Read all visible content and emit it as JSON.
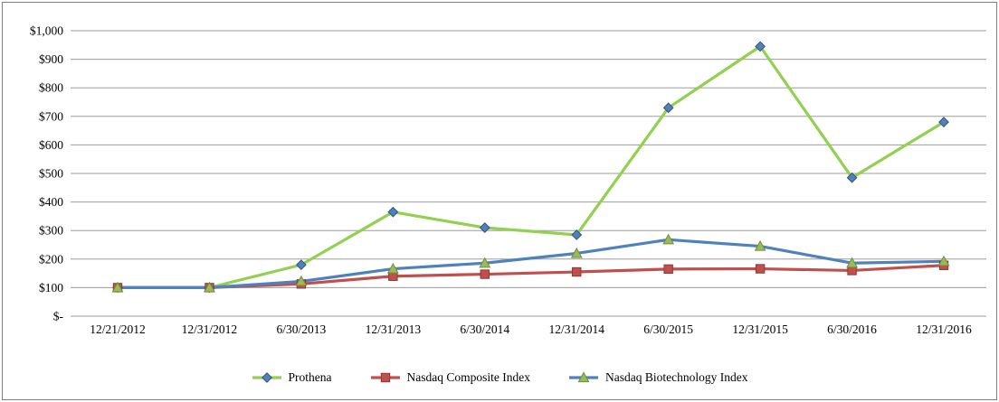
{
  "chart_data": {
    "type": "line",
    "title": "",
    "xlabel": "",
    "ylabel": "",
    "categories": [
      "12/21/2012",
      "12/31/2012",
      "6/30/2013",
      "12/31/2013",
      "6/30/2014",
      "12/31/2014",
      "6/30/2015",
      "12/31/2015",
      "6/30/2016",
      "12/31/2016"
    ],
    "series": [
      {
        "name": "Prothena",
        "values": [
          100,
          100,
          180,
          365,
          310,
          285,
          730,
          945,
          485,
          680
        ],
        "line_color": "#92D050",
        "marker": "diamond",
        "marker_fill": "#4F81BD",
        "marker_edge": "#36537A"
      },
      {
        "name": "Nasdaq Composite Index",
        "values": [
          100,
          100,
          113,
          140,
          147,
          155,
          165,
          166,
          160,
          178
        ],
        "line_color": "#C0504D",
        "marker": "square",
        "marker_fill": "#C0504D",
        "marker_edge": "#8C3836"
      },
      {
        "name": "Nasdaq Biotechnology Index",
        "values": [
          100,
          100,
          122,
          166,
          186,
          220,
          268,
          245,
          186,
          192
        ],
        "line_color": "#4F81BD",
        "marker": "triangle",
        "marker_fill": "#9BBB59",
        "marker_edge": "#6F8F3A"
      }
    ],
    "ylim": [
      0,
      1000
    ],
    "ytick_step": 100,
    "ytick_labels": [
      "$-",
      "$100",
      "$200",
      "$300",
      "$400",
      "$500",
      "$600",
      "$700",
      "$800",
      "$900",
      "$1,000"
    ],
    "grid": "horizontal",
    "gridline_color": "#9C9C9C",
    "border_color": "#808080",
    "legend_position": "bottom"
  }
}
